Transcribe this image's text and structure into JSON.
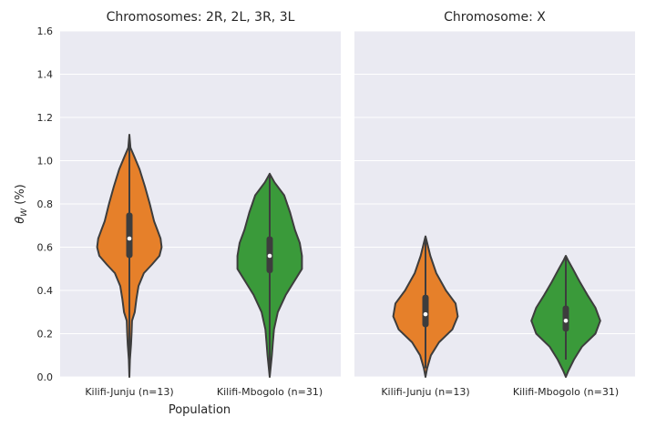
{
  "chart_data": {
    "type": "violin",
    "ylabel": "θW (%)",
    "ylim": [
      0,
      1.6
    ],
    "yticks": [
      "0.0",
      "0.2",
      "0.4",
      "0.6",
      "0.8",
      "1.0",
      "1.2",
      "1.4",
      "1.6"
    ],
    "xlabel": "Population",
    "colors": {
      "Kilifi-Junju (n=13)": "#e6802a",
      "Kilifi-Mbogolo (n=31)": "#3a9a3a"
    },
    "panels": [
      {
        "title": "Chromosomes: 2R, 2L, 3R, 3L",
        "categories": [
          {
            "label": "Kilifi-Junju (n=13)",
            "min": 0.0,
            "q1": 0.55,
            "median": 0.64,
            "q3": 0.76,
            "max": 1.12,
            "profile": [
              [
                0.0,
                0.0
              ],
              [
                0.08,
                0.01
              ],
              [
                0.15,
                0.03
              ],
              [
                0.2,
                0.04
              ],
              [
                0.26,
                0.05
              ],
              [
                0.3,
                0.1
              ],
              [
                0.36,
                0.13
              ],
              [
                0.42,
                0.17
              ],
              [
                0.48,
                0.27
              ],
              [
                0.52,
                0.42
              ],
              [
                0.56,
                0.56
              ],
              [
                0.6,
                0.6
              ],
              [
                0.64,
                0.58
              ],
              [
                0.68,
                0.52
              ],
              [
                0.72,
                0.46
              ],
              [
                0.8,
                0.38
              ],
              [
                0.88,
                0.29
              ],
              [
                0.96,
                0.19
              ],
              [
                1.02,
                0.09
              ],
              [
                1.06,
                0.02
              ],
              [
                1.12,
                0.0
              ]
            ]
          },
          {
            "label": "Kilifi-Mbogolo (n=31)",
            "min": 0.0,
            "q1": 0.48,
            "median": 0.56,
            "q3": 0.65,
            "max": 0.94,
            "profile": [
              [
                0.0,
                0.0
              ],
              [
                0.05,
                0.02
              ],
              [
                0.1,
                0.04
              ],
              [
                0.16,
                0.06
              ],
              [
                0.22,
                0.08
              ],
              [
                0.3,
                0.15
              ],
              [
                0.38,
                0.3
              ],
              [
                0.44,
                0.45
              ],
              [
                0.5,
                0.6
              ],
              [
                0.56,
                0.6
              ],
              [
                0.62,
                0.56
              ],
              [
                0.68,
                0.47
              ],
              [
                0.76,
                0.38
              ],
              [
                0.84,
                0.27
              ],
              [
                0.9,
                0.09
              ],
              [
                0.94,
                0.0
              ]
            ]
          }
        ]
      },
      {
        "title": "Chromosome: X",
        "categories": [
          {
            "label": "Kilifi-Junju (n=13)",
            "min": 0.04,
            "q1": 0.23,
            "median": 0.29,
            "q3": 0.38,
            "max": 0.65,
            "profile": [
              [
                0.0,
                0.0
              ],
              [
                0.04,
                0.03
              ],
              [
                0.1,
                0.1
              ],
              [
                0.16,
                0.25
              ],
              [
                0.22,
                0.5
              ],
              [
                0.28,
                0.6
              ],
              [
                0.34,
                0.56
              ],
              [
                0.4,
                0.38
              ],
              [
                0.48,
                0.2
              ],
              [
                0.56,
                0.09
              ],
              [
                0.62,
                0.03
              ],
              [
                0.65,
                0.0
              ]
            ]
          },
          {
            "label": "Kilifi-Mbogolo (n=31)",
            "min": 0.08,
            "q1": 0.21,
            "median": 0.26,
            "q3": 0.33,
            "max": 0.55,
            "profile": [
              [
                0.0,
                0.0
              ],
              [
                0.03,
                0.05
              ],
              [
                0.08,
                0.15
              ],
              [
                0.14,
                0.3
              ],
              [
                0.2,
                0.55
              ],
              [
                0.26,
                0.64
              ],
              [
                0.32,
                0.55
              ],
              [
                0.38,
                0.4
              ],
              [
                0.44,
                0.26
              ],
              [
                0.5,
                0.13
              ],
              [
                0.54,
                0.04
              ],
              [
                0.56,
                0.0
              ]
            ]
          }
        ]
      }
    ]
  }
}
